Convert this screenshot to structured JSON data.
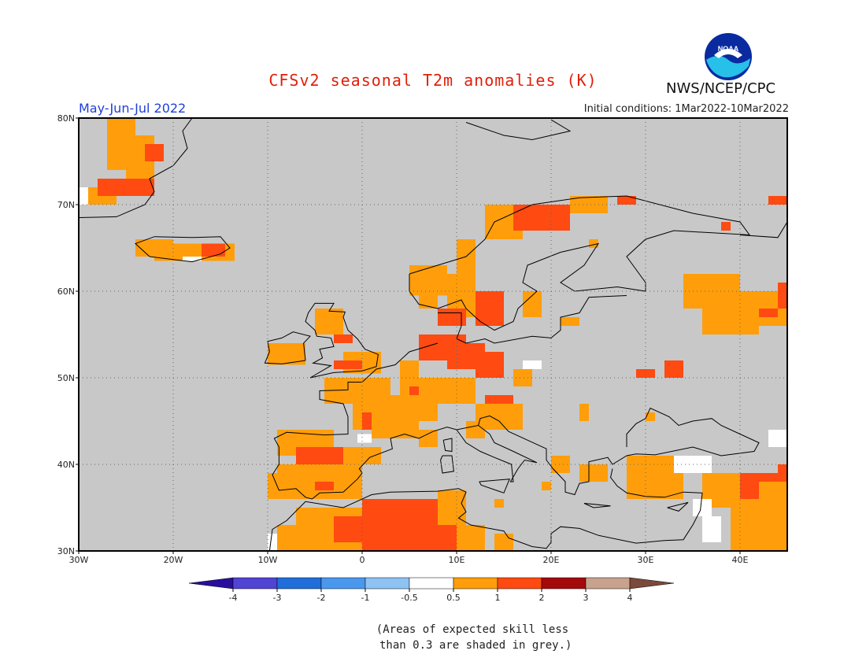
{
  "header": {
    "title": "CFSv2 seasonal T2m anomalies (K)",
    "season": "May-Jun-Jul 2022",
    "initial_conditions": "Initial conditions: 1Mar2022-10Mar2022",
    "agency": "NWS/NCEP/CPC",
    "logo_text": "NOAA"
  },
  "map": {
    "region": "Europe",
    "lon_range": [
      -30,
      45
    ],
    "lat_range": [
      30,
      80
    ],
    "lon_ticks": [
      "30W",
      "20W",
      "10W",
      "0",
      "10E",
      "20E",
      "30E",
      "40E"
    ],
    "lat_ticks": [
      "30N",
      "40N",
      "50N",
      "60N",
      "70N",
      "80N"
    ],
    "grid": "dotted",
    "ocean_color": "#c8c8c8",
    "land_outline_color": "#000000"
  },
  "colorbar": {
    "labels": [
      "-4",
      "-3",
      "-2",
      "-1",
      "-0.5",
      "0.5",
      "1",
      "2",
      "3",
      "4"
    ],
    "colors": [
      "#2a0f9c",
      "#5044d4",
      "#1f6ed9",
      "#4a98ee",
      "#8ec2f3",
      "#ffffff",
      "#ff9e0a",
      "#ff4a12",
      "#a40a0a",
      "#c9a28e",
      "#7a4a3a"
    ]
  },
  "footnote": "(Areas of expected skill less\n than 0.3 are shaded in grey.)"
}
